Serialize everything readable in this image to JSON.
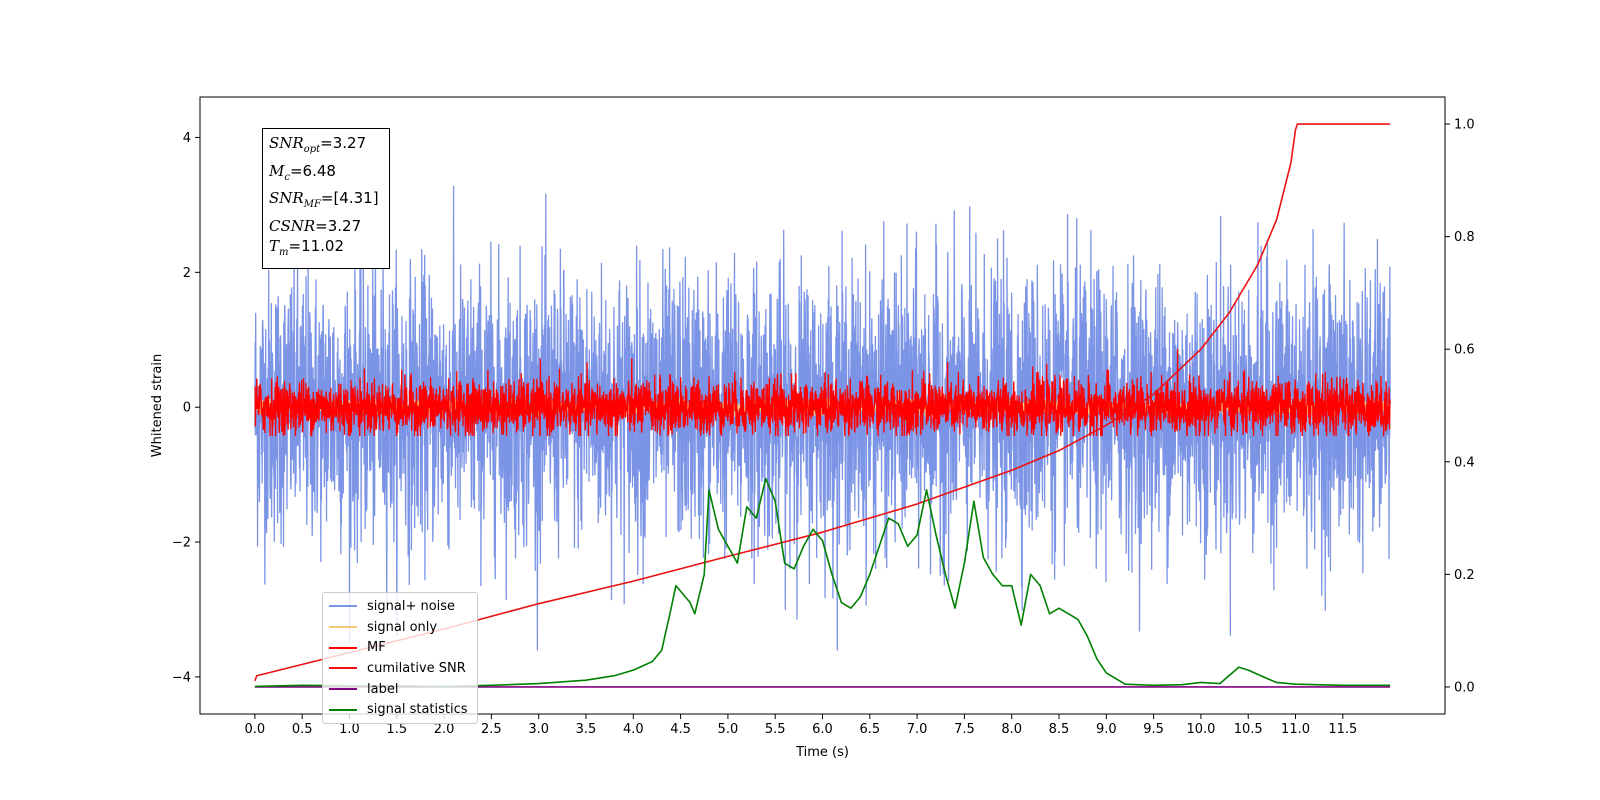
{
  "chart_data": {
    "type": "line",
    "title": "",
    "xlabel": "Time (s)",
    "ylabel": "Whitened strain",
    "ylabel_right": "",
    "xlim": [
      -0.58,
      12.58
    ],
    "ylim": [
      -4.55,
      4.6
    ],
    "ylim_right": [
      -0.048,
      1.048
    ],
    "x_ticks": [
      0.0,
      0.5,
      1.0,
      1.5,
      2.0,
      2.5,
      3.0,
      3.5,
      4.0,
      4.5,
      5.0,
      5.5,
      6.0,
      6.5,
      7.0,
      7.5,
      8.0,
      8.5,
      9.0,
      9.5,
      10.0,
      10.5,
      11.0,
      11.5
    ],
    "x_tick_labels": [
      "0.0",
      "0.5",
      "1.0",
      "1.5",
      "2.0",
      "2.5",
      "3.0",
      "3.5",
      "4.0",
      "4.5",
      "5.0",
      "5.5",
      "6.0",
      "6.5",
      "7.0",
      "7.5",
      "8.0",
      "8.5",
      "9.0",
      "9.5",
      "10.0",
      "10.5",
      "11.0",
      "11.5"
    ],
    "y_ticks": [
      -4,
      -2,
      0,
      2,
      4
    ],
    "y_tick_labels": [
      "−4",
      "−2",
      "0",
      "2",
      "4"
    ],
    "y_right_ticks": [
      0.0,
      0.2,
      0.4,
      0.6,
      0.8,
      1.0
    ],
    "y_right_tick_labels": [
      "0.0",
      "0.2",
      "0.4",
      "0.6",
      "0.8",
      "1.0"
    ],
    "grid": false,
    "legend_position": "lower-left",
    "series": [
      {
        "name": "signal+ noise",
        "color": "#7b94e6",
        "axis": "left",
        "kind": "noise",
        "x_range": [
          0,
          12
        ],
        "amplitude": 1.0,
        "envelope_min": -3.6,
        "envelope_max": 4.15
      },
      {
        "name": "signal only",
        "color": "#f5c97a",
        "axis": "left",
        "kind": "noise",
        "x_range": [
          0,
          12
        ],
        "amplitude": 0.05
      },
      {
        "name": "MF",
        "color": "#ff0000",
        "axis": "left",
        "kind": "noise",
        "x_range": [
          0,
          12
        ],
        "amplitude": 0.2,
        "envelope_min": -0.42,
        "envelope_max": 0.88
      },
      {
        "name": "cumilative SNR",
        "color": "#ee1111",
        "axis": "right",
        "kind": "line",
        "x": [
          0.0,
          0.02,
          1,
          2,
          3,
          4,
          5,
          6,
          7,
          8,
          8.5,
          9,
          9.5,
          10,
          10.3,
          10.6,
          10.8,
          10.95,
          11.0,
          11.02,
          12.0
        ],
        "y": [
          0.011,
          0.02,
          0.061,
          0.103,
          0.148,
          0.188,
          0.232,
          0.275,
          0.325,
          0.385,
          0.42,
          0.465,
          0.52,
          0.6,
          0.665,
          0.75,
          0.83,
          0.93,
          0.99,
          1.0,
          1.0
        ]
      },
      {
        "name": "label",
        "color": "#800080",
        "axis": "right",
        "kind": "line",
        "x": [
          0,
          12
        ],
        "y": [
          0.0,
          0.0
        ]
      },
      {
        "name": "signal statistics",
        "color": "#008000",
        "axis": "right",
        "kind": "line",
        "x": [
          0,
          0.5,
          1,
          1.5,
          2,
          2.5,
          3,
          3.5,
          3.8,
          4.0,
          4.2,
          4.3,
          4.4,
          4.45,
          4.55,
          4.6,
          4.65,
          4.75,
          4.8,
          4.9,
          5.0,
          5.1,
          5.2,
          5.3,
          5.4,
          5.5,
          5.6,
          5.7,
          5.8,
          5.9,
          6.0,
          6.1,
          6.2,
          6.3,
          6.4,
          6.5,
          6.6,
          6.7,
          6.8,
          6.9,
          7.0,
          7.1,
          7.2,
          7.3,
          7.4,
          7.5,
          7.6,
          7.7,
          7.8,
          7.9,
          8.0,
          8.1,
          8.2,
          8.3,
          8.4,
          8.5,
          8.6,
          8.7,
          8.8,
          8.9,
          9.0,
          9.2,
          9.5,
          9.8,
          10.0,
          10.2,
          10.4,
          10.5,
          10.7,
          10.8,
          11.0,
          11.5,
          12.0
        ],
        "y": [
          0.001,
          0.003,
          0.002,
          0.002,
          0.001,
          0.003,
          0.006,
          0.012,
          0.02,
          0.03,
          0.045,
          0.065,
          0.14,
          0.18,
          0.16,
          0.15,
          0.13,
          0.2,
          0.35,
          0.28,
          0.25,
          0.22,
          0.32,
          0.3,
          0.37,
          0.33,
          0.22,
          0.21,
          0.25,
          0.28,
          0.26,
          0.2,
          0.15,
          0.14,
          0.16,
          0.2,
          0.25,
          0.3,
          0.29,
          0.25,
          0.27,
          0.35,
          0.27,
          0.2,
          0.14,
          0.22,
          0.33,
          0.23,
          0.2,
          0.18,
          0.18,
          0.11,
          0.2,
          0.18,
          0.13,
          0.14,
          0.13,
          0.12,
          0.09,
          0.05,
          0.025,
          0.005,
          0.003,
          0.004,
          0.008,
          0.006,
          0.035,
          0.03,
          0.015,
          0.008,
          0.005,
          0.003,
          0.003
        ]
      }
    ],
    "annotation": {
      "lines": [
        {
          "base": "SNR",
          "sub": "opt",
          "value": "=3.27"
        },
        {
          "base": "M",
          "sub": "c",
          "value": "=6.48"
        },
        {
          "base": "SNR",
          "sub": "MF",
          "value": "=[4.31]"
        },
        {
          "base": "CSNR",
          "sub": "",
          "value": "=3.27"
        },
        {
          "base": "T",
          "sub": "m",
          "value": "=11.02"
        }
      ]
    }
  }
}
